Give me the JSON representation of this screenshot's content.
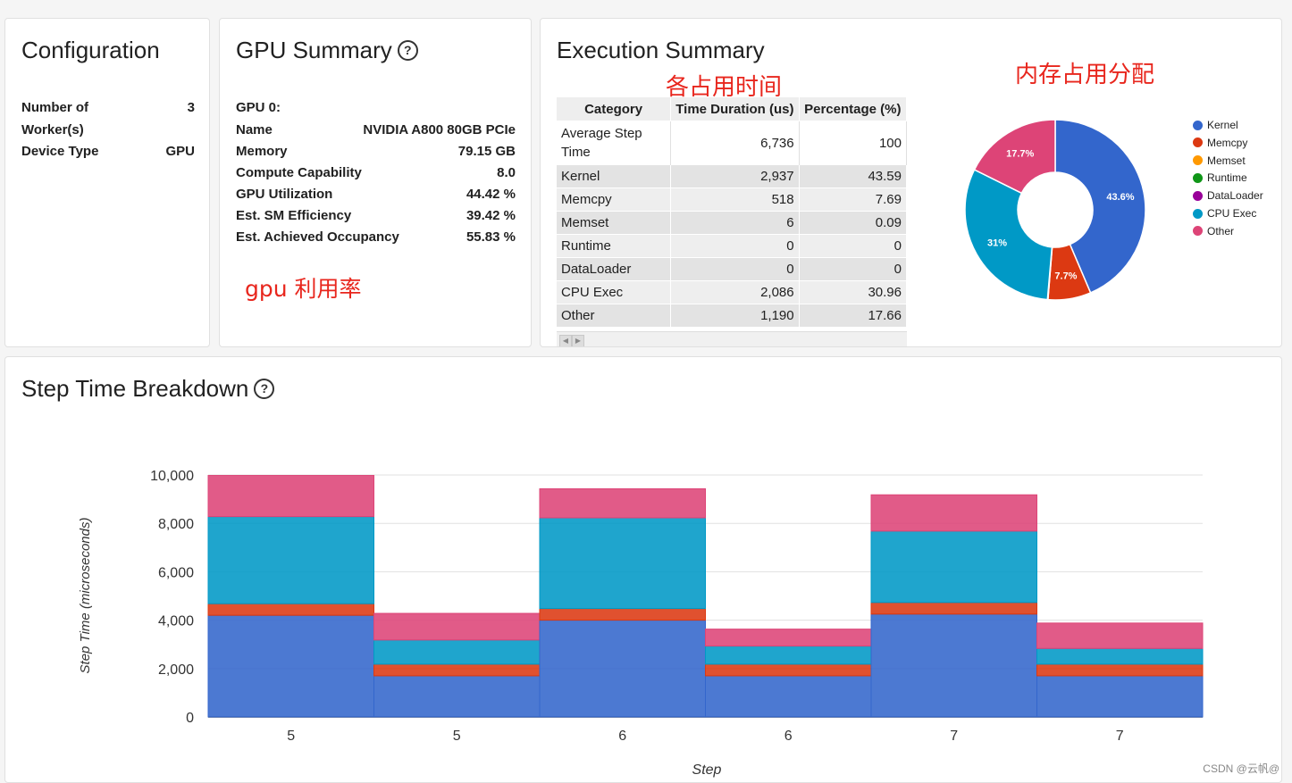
{
  "configuration": {
    "title": "Configuration",
    "rows": [
      {
        "label_line1": "Number of",
        "label_line2": "Worker(s)",
        "value": "3"
      },
      {
        "label": "Device Type",
        "value": "GPU"
      }
    ]
  },
  "gpu_summary": {
    "title": "GPU Summary",
    "gpu_label": "GPU 0:",
    "rows": [
      {
        "label": "Name",
        "value": "NVIDIA A800 80GB PCIe"
      },
      {
        "label": "Memory",
        "value": "79.15 GB"
      },
      {
        "label": "Compute Capability",
        "value": "8.0"
      },
      {
        "label": "GPU Utilization",
        "value": "44.42 %"
      },
      {
        "label": "Est. SM Efficiency",
        "value": "39.42 %"
      },
      {
        "label": "Est. Achieved Occupancy",
        "value": "55.83 %"
      }
    ],
    "annotation": "gpu 利用率"
  },
  "execution_summary": {
    "title": "Execution Summary",
    "annotation_time": "各占用时间",
    "annotation_memory": "内存占用分配",
    "columns": [
      "Category",
      "Time Duration (us)",
      "Percentage (%)"
    ],
    "rows": [
      {
        "category_line1": "Average Step",
        "category_line2": "Time",
        "duration": "6,736",
        "percentage": "100"
      },
      {
        "category": "Kernel",
        "duration": "2,937",
        "percentage": "43.59"
      },
      {
        "category": "Memcpy",
        "duration": "518",
        "percentage": "7.69"
      },
      {
        "category": "Memset",
        "duration": "6",
        "percentage": "0.09"
      },
      {
        "category": "Runtime",
        "duration": "0",
        "percentage": "0"
      },
      {
        "category": "DataLoader",
        "duration": "0",
        "percentage": "0"
      },
      {
        "category": "CPU Exec",
        "duration": "2,086",
        "percentage": "30.96"
      },
      {
        "category": "Other",
        "duration": "1,190",
        "percentage": "17.66"
      }
    ],
    "pie": {
      "legend": [
        {
          "name": "Kernel",
          "color": "#3366cc"
        },
        {
          "name": "Memcpy",
          "color": "#dc3912"
        },
        {
          "name": "Memset",
          "color": "#ff9900"
        },
        {
          "name": "Runtime",
          "color": "#109618"
        },
        {
          "name": "DataLoader",
          "color": "#990099"
        },
        {
          "name": "CPU Exec",
          "color": "#0099c6"
        },
        {
          "name": "Other",
          "color": "#dd4477"
        }
      ],
      "slices": [
        {
          "name": "Kernel",
          "value": 43.59,
          "label": "43.6%",
          "color": "#3366cc"
        },
        {
          "name": "Memcpy",
          "value": 7.69,
          "label": "7.7%",
          "color": "#dc3912"
        },
        {
          "name": "Memset",
          "value": 0.09,
          "label": "",
          "color": "#ff9900"
        },
        {
          "name": "CPU Exec",
          "value": 30.96,
          "label": "31%",
          "color": "#0099c6"
        },
        {
          "name": "Other",
          "value": 17.66,
          "label": "17.7%",
          "color": "#dd4477"
        }
      ]
    }
  },
  "step_time": {
    "title": "Step Time Breakdown",
    "watermark": "CSDN @云帆@"
  },
  "chart_data": {
    "type": "bar",
    "stacked": true,
    "categories": [
      "5",
      "5",
      "6",
      "6",
      "7",
      "7"
    ],
    "xlabel": "Step",
    "ylabel": "Step Time (microseconds)",
    "ylim": [
      0,
      10000
    ],
    "yticks": [
      "0",
      "2,000",
      "4,000",
      "6,000",
      "8,000",
      "10,000"
    ],
    "grid": true,
    "series": [
      {
        "name": "Kernel",
        "color": "#3366cc",
        "values": [
          4200,
          1700,
          4000,
          1700,
          4250,
          1700
        ]
      },
      {
        "name": "Memcpy",
        "color": "#dc3912",
        "values": [
          480,
          480,
          480,
          480,
          480,
          480
        ]
      },
      {
        "name": "CPU Exec",
        "color": "#0099c6",
        "values": [
          3600,
          1000,
          3750,
          750,
          2950,
          650
        ]
      },
      {
        "name": "Other",
        "color": "#dd4477",
        "values": [
          1700,
          1100,
          1200,
          700,
          1500,
          1050
        ]
      }
    ]
  }
}
